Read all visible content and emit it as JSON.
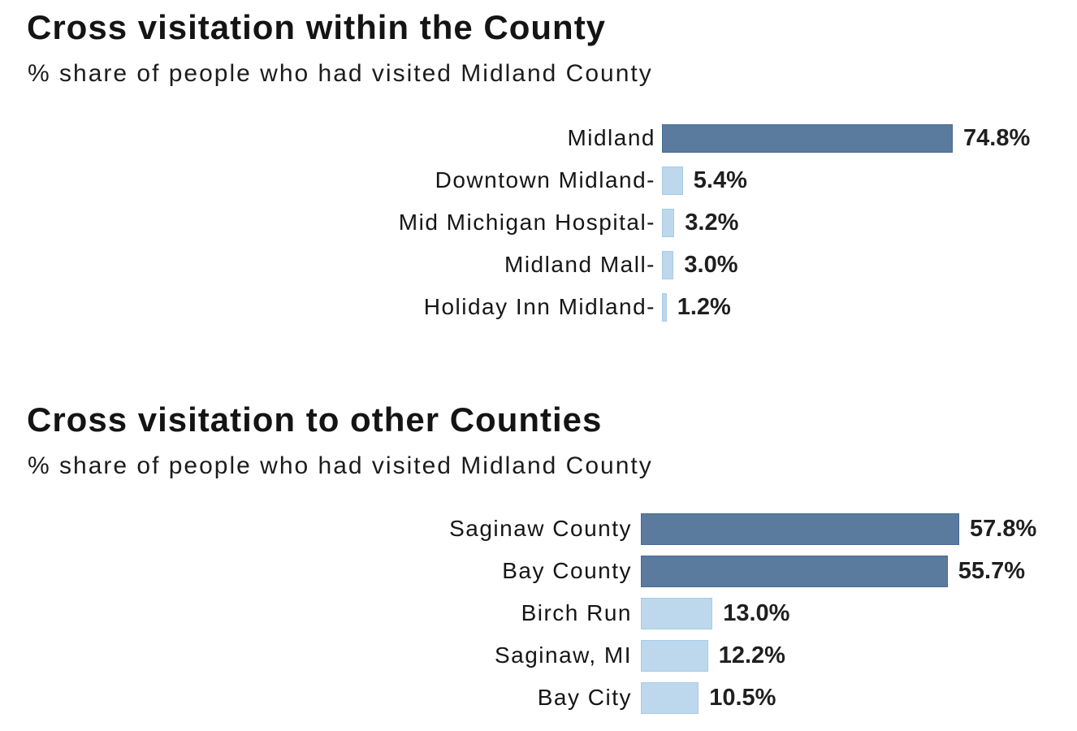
{
  "colors": {
    "bar_dark": "#5b7b9e",
    "bar_dark_border": "#466a92",
    "bar_light": "#bdd7ec",
    "bar_light_border": "#a8cbe6",
    "title_text": "#141414",
    "subtitle_text": "#1c1c1c",
    "label_text": "#161616",
    "value_text": "#1f1f1f",
    "page_background": "#ffffff"
  },
  "chart_data": [
    {
      "type": "bar",
      "orientation": "horizontal",
      "title": "Cross visitation within the County",
      "subtitle": "% share of people who had visited Midland County",
      "categories": [
        "Midland",
        "Downtown Midland-",
        "Mid Michigan Hospital-",
        "Midland Mall-",
        "Holiday Inn Midland-"
      ],
      "values": [
        74.8,
        5.4,
        3.2,
        3.0,
        1.2
      ],
      "value_labels": [
        "74.8%",
        "5.4%",
        "3.2%",
        "3.0%",
        "1.2%"
      ],
      "bar_shades": [
        "dark",
        "light",
        "light",
        "light",
        "light"
      ],
      "xlabel": "",
      "ylabel": "",
      "xlim": [
        0,
        80
      ],
      "grid": false,
      "legend": false,
      "data_labels_position": "end-of-bar"
    },
    {
      "type": "bar",
      "orientation": "horizontal",
      "title": "Cross visitation to other Counties",
      "subtitle": "% share of people who had visited Midland County",
      "categories": [
        "Saginaw County",
        "Bay County",
        "Birch Run",
        "Saginaw, MI",
        "Bay City"
      ],
      "values": [
        57.8,
        55.7,
        13.0,
        12.2,
        10.5
      ],
      "value_labels": [
        "57.8%",
        "55.7%",
        "13.0%",
        "12.2%",
        "10.5%"
      ],
      "bar_shades": [
        "dark",
        "dark",
        "light",
        "light",
        "light"
      ],
      "xlabel": "",
      "ylabel": "",
      "xlim": [
        0,
        65
      ],
      "grid": false,
      "legend": false,
      "data_labels_position": "end-of-bar"
    }
  ]
}
